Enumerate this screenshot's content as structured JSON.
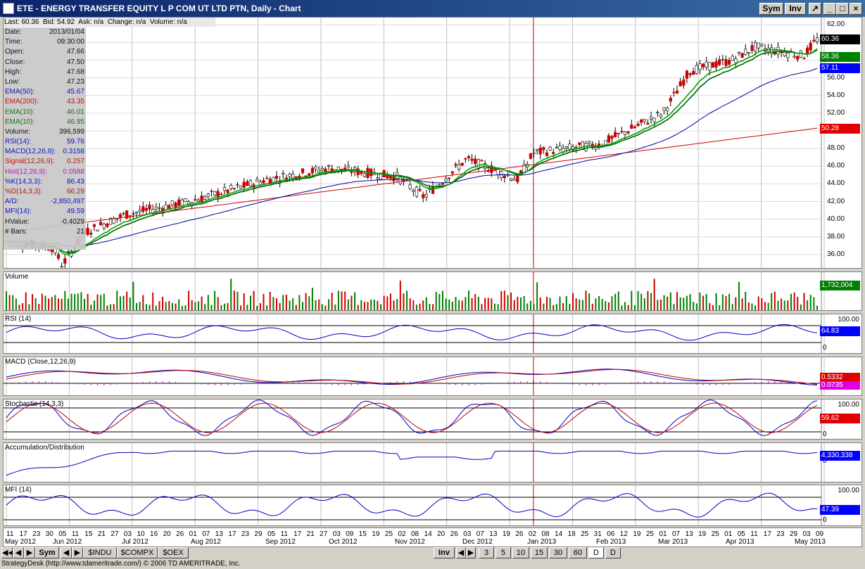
{
  "window": {
    "title": "ETE - ENERGY TRANSFER EQUITY L P COM UT LTD PTN, Daily - Chart",
    "buttons": {
      "sym": "Sym",
      "inv": "Inv"
    }
  },
  "info_bar": {
    "last": "Last: 60.36",
    "bid": "Bid: 54.92",
    "ask": "Ask: n/a",
    "change": "Change: n/a",
    "volume": "Volume: n/a"
  },
  "data_window": [
    {
      "label": "Date:",
      "value": "2013/01/04",
      "color": "#000000"
    },
    {
      "label": "Time:",
      "value": "09:30:00",
      "color": "#000000"
    },
    {
      "label": "Open:",
      "value": "47.66",
      "color": "#000000"
    },
    {
      "label": "Close:",
      "value": "47.50",
      "color": "#000000"
    },
    {
      "label": "High:",
      "value": "47.68",
      "color": "#000000"
    },
    {
      "label": "Low:",
      "value": "47.23",
      "color": "#000000"
    },
    {
      "label": "EMA(50):",
      "value": "45.67",
      "color": "#0000c0"
    },
    {
      "label": "EMA(200):",
      "value": "43.35",
      "color": "#c00000"
    },
    {
      "label": "EMA(10):",
      "value": "46.01",
      "color": "#007000"
    },
    {
      "label": "EMA(10):",
      "value": "46.95",
      "color": "#007000"
    },
    {
      "label": "Volume:",
      "value": "396,599",
      "color": "#000000"
    },
    {
      "label": "RSI(14):",
      "value": "59.76",
      "color": "#0000c0"
    },
    {
      "label": "MACD(12,26,9):",
      "value": "0.3158",
      "color": "#0000c0"
    },
    {
      "label": "Signal(12,26,9):",
      "value": "0.257",
      "color": "#c00000"
    },
    {
      "label": "Hist(12,26,9):",
      "value": "0.0588",
      "color": "#c000c0"
    },
    {
      "label": "%K(14,3,3):",
      "value": "86.43",
      "color": "#0000c0"
    },
    {
      "label": "%D(14,3,3):",
      "value": "66.29",
      "color": "#c00000"
    },
    {
      "label": "A/D:",
      "value": "-2,850,497",
      "color": "#0000c0"
    },
    {
      "label": "MFI(14):",
      "value": "49.59",
      "color": "#0000c0"
    },
    {
      "label": "HValue:",
      "value": "-0.4029",
      "color": "#000000"
    },
    {
      "label": "# Bars:",
      "value": "21",
      "color": "#000000"
    }
  ],
  "price_axis": [
    "62.00",
    "60.00",
    "58.00",
    "56.00",
    "54.00",
    "52.00",
    "50.00",
    "48.00",
    "46.00",
    "44.00",
    "42.00",
    "40.00",
    "38.00",
    "36.00"
  ],
  "price_tags": [
    {
      "text": "60.36",
      "value": 60.36,
      "color": "#000000"
    },
    {
      "text": "58.36",
      "value": 58.36,
      "color": "#008000"
    },
    {
      "text": "57.11",
      "value": 57.11,
      "color": "#0000ff"
    },
    {
      "text": "50.28",
      "value": 50.28,
      "color": "#e00000"
    }
  ],
  "panels": {
    "volume": {
      "label": "Volume",
      "tag": "1,732,004",
      "tag_color": "#008000"
    },
    "rsi": {
      "label": "RSI (14)",
      "top": "100.00",
      "bottom": "0",
      "tag": "64.83",
      "tag_color": "#0000ff"
    },
    "macd": {
      "label": "MACD (Close,12,26,9)",
      "tag": "0.5332",
      "tag2": "0.0735",
      "tag_color": "#e00000",
      "tag2_color": "#e000e0"
    },
    "stochastic": {
      "label": "Stochastic (14,3,3)",
      "top": "100.00",
      "bottom": "0",
      "tag": "59.62",
      "tag_color": "#e00000"
    },
    "ad": {
      "label": "Accumulation/Distribution",
      "bottom": "0",
      "tag": "4,330,338",
      "tag_color": "#0000ff"
    },
    "mfi": {
      "label": "MFI (14)",
      "top": "100.00",
      "bottom": "0",
      "tag": "47.39",
      "tag_color": "#0000ff"
    }
  },
  "x_axis": {
    "days": [
      "11",
      "17",
      "23",
      "30",
      "05",
      "11",
      "15",
      "21",
      "27",
      "03",
      "10",
      "16",
      "20",
      "26",
      "01",
      "07",
      "13",
      "17",
      "23",
      "29",
      "05",
      "11",
      "17",
      "21",
      "27",
      "03",
      "09",
      "15",
      "19",
      "25",
      "02",
      "08",
      "14",
      "20",
      "26",
      "03",
      "07",
      "13",
      "19",
      "26",
      "02",
      "08",
      "14",
      "18",
      "25",
      "31",
      "06",
      "12",
      "19",
      "25",
      "01",
      "07",
      "13",
      "19",
      "25",
      "01",
      "05",
      "11",
      "17",
      "23",
      "29",
      "03",
      "09"
    ],
    "months": [
      "May 2012",
      "Jun 2012",
      "Jul 2012",
      "Aug 2012",
      "Sep 2012",
      "Oct 2012",
      "Nov 2012",
      "Dec 2012",
      "Jan 2013",
      "Feb 2013",
      "Mar 2013",
      "Apr 2013",
      "May 2013"
    ]
  },
  "bottom_bar": {
    "symbols": [
      "Sym",
      "$INDU",
      "$COMPX",
      "$OEX"
    ],
    "inv": "Inv",
    "intervals": [
      "3",
      "5",
      "10",
      "15",
      "30",
      "60",
      "D",
      "D"
    ]
  },
  "status": "StrategyDesk (http://www.tdameritrade.com/) © 2006 TD AMERITRADE, Inc.",
  "chart_data": {
    "type": "candlestick",
    "title": "ETE - ENERGY TRANSFER EQUITY L P COM UT LTD PTN, Daily - Chart",
    "x_range": [
      "2012-05-11",
      "2013-05-09"
    ],
    "y_range": [
      34,
      62.5
    ],
    "close_series_approx": {
      "dates": [
        "2012-05-11",
        "2012-06-01",
        "2012-06-05",
        "2012-06-15",
        "2012-07-03",
        "2012-08-01",
        "2012-09-05",
        "2012-10-03",
        "2012-11-02",
        "2012-11-14",
        "2012-12-03",
        "2012-12-26",
        "2013-01-02",
        "2013-02-01",
        "2013-03-01",
        "2013-03-13",
        "2013-04-01",
        "2013-04-11",
        "2013-05-03",
        "2013-05-09"
      ],
      "values": [
        37.5,
        36.8,
        34.8,
        38.5,
        40.5,
        42.0,
        44.5,
        45.8,
        44.8,
        42.5,
        46.8,
        44.5,
        47.5,
        48.5,
        52.0,
        56.8,
        58.0,
        59.5,
        58.5,
        60.36
      ]
    },
    "series": [
      {
        "name": "EMA(50)",
        "last": 57.11
      },
      {
        "name": "EMA(200)",
        "last": 50.28
      },
      {
        "name": "EMA(10)",
        "last": 58.36
      }
    ]
  }
}
